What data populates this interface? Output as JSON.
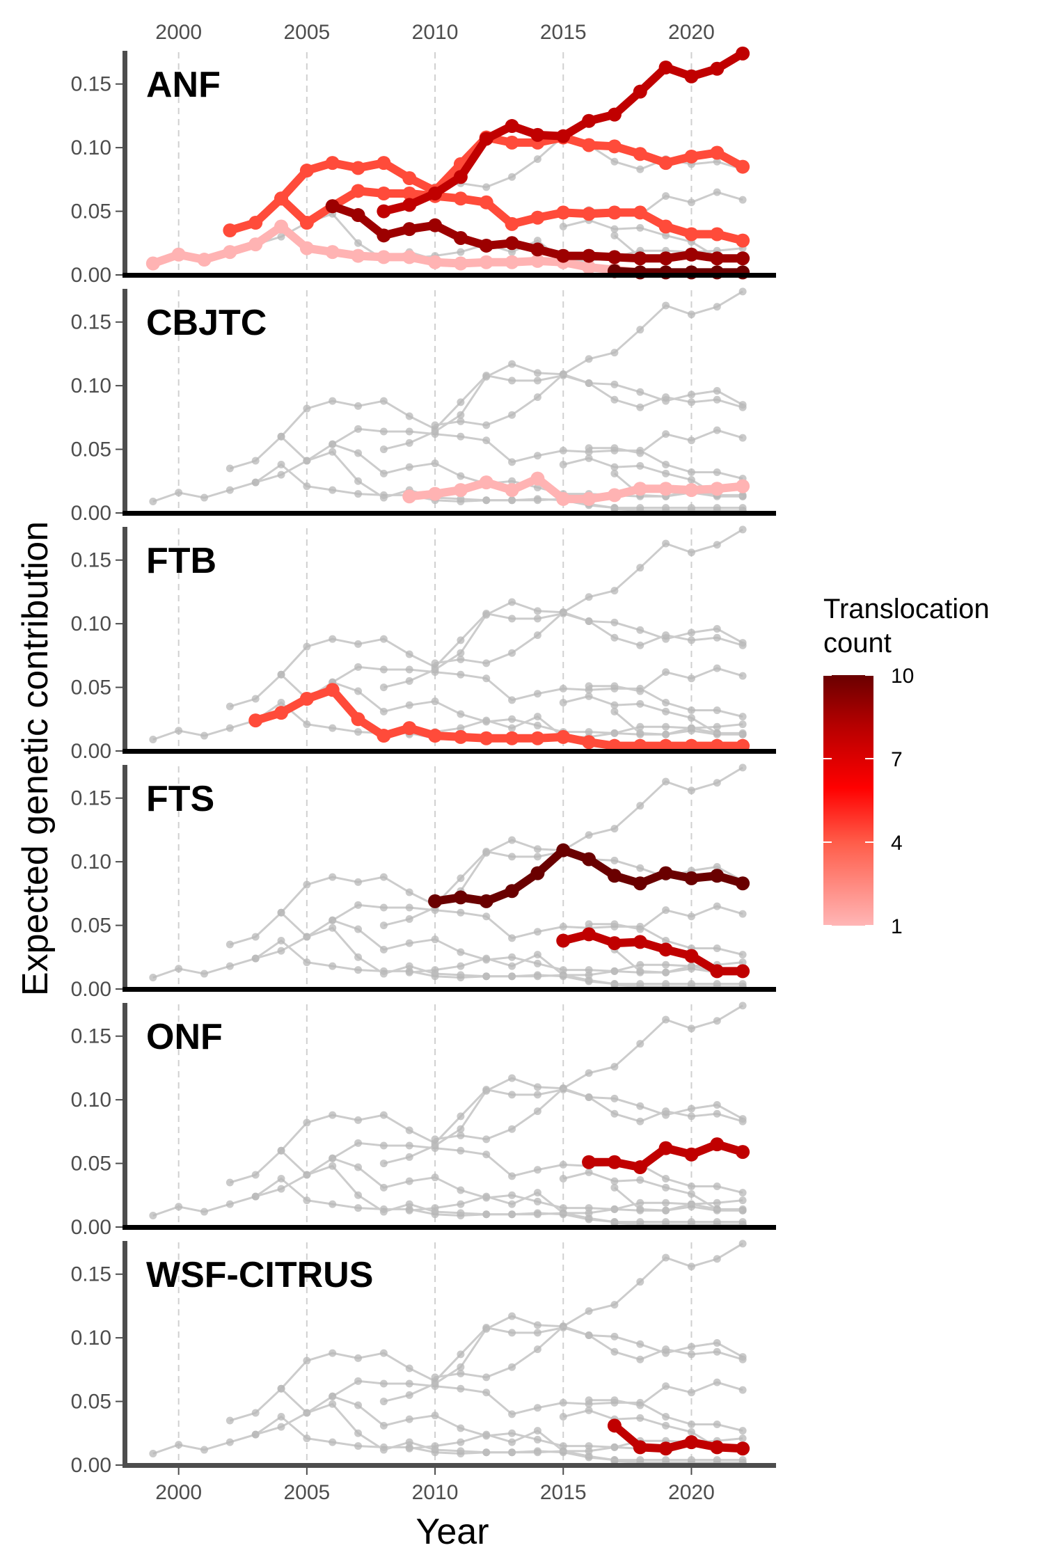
{
  "chart_data": {
    "type": "line",
    "ylabel": "Expected genetic contribution",
    "xlabel": "Year",
    "xlim": [
      1998,
      2023.3
    ],
    "ylim": [
      0,
      0.175
    ],
    "x_ticks": [
      2000,
      2005,
      2010,
      2015,
      2020
    ],
    "y_ticks": [
      0.0,
      0.05,
      0.1,
      0.15
    ],
    "y_tick_labels": [
      "0.00",
      "0.05",
      "0.10",
      "0.15"
    ],
    "legend": {
      "title_lines": [
        "Translocation",
        "count"
      ],
      "min": 1,
      "max": 10,
      "ticks": [
        1,
        4,
        7,
        10
      ],
      "colors": [
        "#ffb6b6",
        "#ff5d4a",
        "#ff0000",
        "#c00000",
        "#6a0000"
      ],
      "placement": "right"
    },
    "series": [
      {
        "id": "A1",
        "panel": "ANF",
        "count": 1,
        "color": "#ffb3b3",
        "x": [
          1999,
          2000,
          2001,
          2002,
          2003,
          2004,
          2005,
          2006,
          2007,
          2008,
          2009,
          2010,
          2011,
          2012,
          2013,
          2014,
          2015,
          2016,
          2017,
          2018,
          2019,
          2020,
          2021,
          2022
        ],
        "y": [
          0.009,
          0.016,
          0.012,
          0.018,
          0.024,
          0.038,
          0.021,
          0.018,
          0.015,
          0.014,
          0.014,
          0.01,
          0.009,
          0.01,
          0.01,
          0.011,
          0.01,
          0.006,
          0.004,
          0.002,
          0.002,
          0.002,
          0.002,
          0.002
        ]
      },
      {
        "id": "A2",
        "panel": "ANF",
        "count": 4,
        "color": "#ff4b3a",
        "x": [
          2002,
          2003,
          2004,
          2005,
          2006,
          2007,
          2008,
          2009,
          2010,
          2011,
          2012,
          2013,
          2014,
          2015,
          2016,
          2017,
          2018,
          2019,
          2020,
          2021,
          2022
        ],
        "y": [
          0.035,
          0.041,
          0.06,
          0.082,
          0.088,
          0.084,
          0.088,
          0.076,
          0.066,
          0.087,
          0.108,
          0.104,
          0.104,
          0.108,
          0.102,
          0.101,
          0.095,
          0.088,
          0.093,
          0.096,
          0.085
        ]
      },
      {
        "id": "A3",
        "panel": "ANF",
        "count": 4,
        "color": "#ff4b3a",
        "x": [
          2004,
          2005,
          2006,
          2007,
          2008,
          2009,
          2010,
          2011,
          2012,
          2013,
          2014,
          2015,
          2016,
          2017,
          2018,
          2019,
          2020,
          2021,
          2022
        ],
        "y": [
          0.06,
          0.041,
          0.054,
          0.066,
          0.064,
          0.064,
          0.062,
          0.06,
          0.057,
          0.04,
          0.045,
          0.049,
          0.048,
          0.049,
          0.049,
          0.038,
          0.032,
          0.032,
          0.027
        ]
      },
      {
        "id": "A4",
        "panel": "ANF",
        "count": 7,
        "color": "#9c0000",
        "x": [
          2006,
          2007,
          2008,
          2009,
          2010,
          2011,
          2012,
          2013,
          2014,
          2015,
          2016,
          2017,
          2018,
          2019,
          2020,
          2021,
          2022
        ],
        "y": [
          0.054,
          0.047,
          0.031,
          0.036,
          0.039,
          0.029,
          0.023,
          0.025,
          0.02,
          0.015,
          0.015,
          0.014,
          0.013,
          0.013,
          0.016,
          0.013,
          0.013
        ]
      },
      {
        "id": "A5",
        "panel": "ANF",
        "count": 6,
        "color": "#c00000",
        "x": [
          2008,
          2009,
          2010,
          2011,
          2012,
          2013,
          2014,
          2015,
          2016,
          2017,
          2018,
          2019,
          2020,
          2021,
          2022
        ],
        "y": [
          0.05,
          0.055,
          0.064,
          0.077,
          0.107,
          0.117,
          0.11,
          0.109,
          0.121,
          0.126,
          0.144,
          0.163,
          0.156,
          0.162,
          0.174
        ]
      },
      {
        "id": "A6",
        "panel": "ANF",
        "count": 10,
        "color": "#6a0000",
        "x": [
          2017,
          2018,
          2019,
          2020,
          2021,
          2022
        ],
        "y": [
          0.003,
          0.002,
          0.002,
          0.002,
          0.002,
          0.002
        ]
      },
      {
        "id": "C1",
        "panel": "CBJTC",
        "count": 1,
        "color": "#ffb3b3",
        "x": [
          2009,
          2010,
          2011,
          2012,
          2013,
          2014,
          2015,
          2016,
          2017,
          2018,
          2019,
          2020,
          2021,
          2022
        ],
        "y": [
          0.013,
          0.015,
          0.018,
          0.024,
          0.018,
          0.027,
          0.011,
          0.011,
          0.014,
          0.019,
          0.019,
          0.018,
          0.019,
          0.021
        ]
      },
      {
        "id": "B1",
        "panel": "FTB",
        "count": 4,
        "color": "#ff4b3a",
        "x": [
          2003,
          2004,
          2005,
          2006,
          2007,
          2008,
          2009,
          2010,
          2011,
          2012,
          2013,
          2014,
          2015,
          2016,
          2017,
          2018,
          2019,
          2020,
          2021,
          2022
        ],
        "y": [
          0.024,
          0.03,
          0.041,
          0.048,
          0.025,
          0.012,
          0.018,
          0.012,
          0.011,
          0.01,
          0.01,
          0.01,
          0.011,
          0.007,
          0.004,
          0.004,
          0.004,
          0.004,
          0.004,
          0.004
        ]
      },
      {
        "id": "S1",
        "panel": "FTS",
        "count": 10,
        "color": "#6a0000",
        "x": [
          2010,
          2011,
          2012,
          2013,
          2014,
          2015,
          2016,
          2017,
          2018,
          2019,
          2020,
          2021,
          2022
        ],
        "y": [
          0.069,
          0.072,
          0.069,
          0.077,
          0.091,
          0.109,
          0.102,
          0.089,
          0.083,
          0.091,
          0.087,
          0.089,
          0.083
        ]
      },
      {
        "id": "S2",
        "panel": "FTS",
        "count": 6,
        "color": "#c00000",
        "x": [
          2015,
          2016,
          2017,
          2018,
          2019,
          2020,
          2021,
          2022
        ],
        "y": [
          0.038,
          0.043,
          0.036,
          0.037,
          0.031,
          0.026,
          0.014,
          0.014
        ]
      },
      {
        "id": "O1",
        "panel": "ONF",
        "count": 6,
        "color": "#c00000",
        "x": [
          2016,
          2017,
          2018,
          2019,
          2020,
          2021,
          2022
        ],
        "y": [
          0.051,
          0.051,
          0.047,
          0.062,
          0.057,
          0.065,
          0.059
        ]
      },
      {
        "id": "W1",
        "panel": "WSF-CITRUS",
        "count": 6,
        "color": "#c00000",
        "x": [
          2017,
          2018,
          2019,
          2020,
          2021,
          2022
        ],
        "y": [
          0.031,
          0.014,
          0.013,
          0.018,
          0.014,
          0.013
        ]
      }
    ],
    "panels": [
      {
        "label": "ANF",
        "series": [
          "A1",
          "A2",
          "A3",
          "A4",
          "A5",
          "A6"
        ]
      },
      {
        "label": "CBJTC",
        "series": [
          "C1"
        ]
      },
      {
        "label": "FTB",
        "series": [
          "B1"
        ]
      },
      {
        "label": "FTS",
        "series": [
          "S1",
          "S2"
        ]
      },
      {
        "label": "ONF",
        "series": [
          "O1"
        ]
      },
      {
        "label": "WSF-CITRUS",
        "series": [
          "W1"
        ]
      }
    ]
  }
}
